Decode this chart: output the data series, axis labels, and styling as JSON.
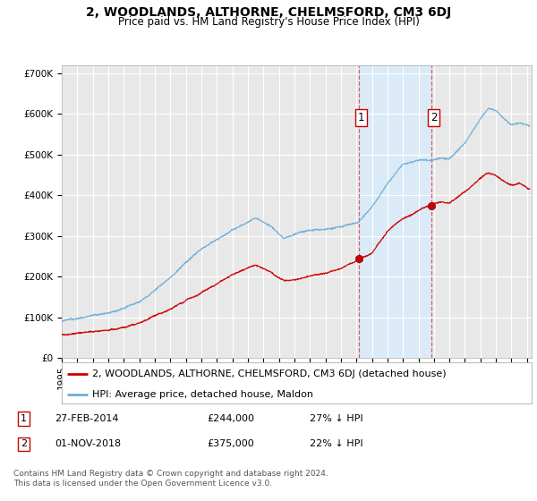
{
  "title": "2, WOODLANDS, ALTHORNE, CHELMSFORD, CM3 6DJ",
  "subtitle": "Price paid vs. HM Land Registry's House Price Index (HPI)",
  "background_color": "#ffffff",
  "plot_bg_color": "#e8e8e8",
  "grid_color": "#ffffff",
  "hpi_color": "#6baed6",
  "price_color": "#cc0000",
  "ylim": [
    0,
    720000
  ],
  "yticks": [
    0,
    100000,
    200000,
    300000,
    400000,
    500000,
    600000,
    700000
  ],
  "ytick_labels": [
    "£0",
    "£100K",
    "£200K",
    "£300K",
    "£400K",
    "£500K",
    "£600K",
    "£700K"
  ],
  "sale1_date_num": 2014.15,
  "sale1_price": 244000,
  "sale1_label": "1",
  "sale2_date_num": 2018.84,
  "sale2_price": 375000,
  "sale2_label": "2",
  "legend_line1": "2, WOODLANDS, ALTHORNE, CHELMSFORD, CM3 6DJ (detached house)",
  "legend_line2": "HPI: Average price, detached house, Maldon",
  "table_row1": [
    "1",
    "27-FEB-2014",
    "£244,000",
    "27% ↓ HPI"
  ],
  "table_row2": [
    "2",
    "01-NOV-2018",
    "£375,000",
    "22% ↓ HPI"
  ],
  "footnote": "Contains HM Land Registry data © Crown copyright and database right 2024.\nThis data is licensed under the Open Government Licence v3.0.",
  "shaded_color": "#dbeaf7",
  "xmin": 1995.0,
  "xmax": 2025.3,
  "title_fontsize": 10,
  "subtitle_fontsize": 8.5,
  "tick_fontsize": 7.5,
  "legend_fontsize": 8,
  "table_fontsize": 8,
  "footnote_fontsize": 6.5
}
